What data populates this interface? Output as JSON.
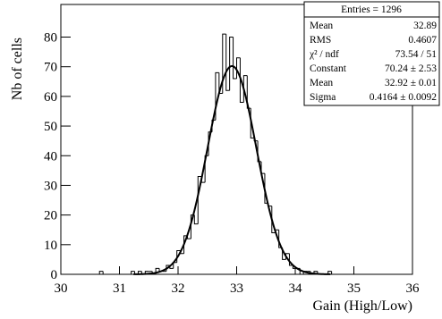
{
  "chart_data": {
    "type": "histogram",
    "x_label": "Gain (High/Low)",
    "y_label": "Nb of cells",
    "bins": [
      30,
      30.06,
      30.12,
      30.18,
      30.24,
      30.3,
      30.36,
      30.42,
      30.48,
      30.54,
      30.6,
      30.66,
      30.72,
      30.78,
      30.84,
      30.9,
      30.96,
      31.02,
      31.08,
      31.14,
      31.2,
      31.26,
      31.32,
      31.38,
      31.44,
      31.5,
      31.56,
      31.62,
      31.68,
      31.74,
      31.8,
      31.86,
      31.92,
      31.98,
      32.04,
      32.1,
      32.16,
      32.22,
      32.28,
      32.34,
      32.4,
      32.46,
      32.52,
      32.58,
      32.64,
      32.7,
      32.76,
      32.82,
      32.88,
      32.94,
      33,
      33.06,
      33.12,
      33.18,
      33.24,
      33.3,
      33.36,
      33.42,
      33.48,
      33.54,
      33.6,
      33.66,
      33.72,
      33.78,
      33.84,
      33.9,
      33.96,
      34.02,
      34.08,
      34.14,
      34.2,
      34.26,
      34.32,
      34.38,
      34.44,
      34.5,
      34.56,
      34.62,
      34.68,
      34.74,
      34.8,
      34.86,
      34.92,
      34.98,
      35.04,
      35.1,
      35.16,
      35.22,
      35.28,
      35.34,
      35.4,
      35.46,
      35.52,
      35.58,
      35.64,
      35.7,
      35.76,
      35.82,
      35.88,
      35.94,
      36
    ],
    "values": [
      0,
      0,
      0,
      0,
      0,
      0,
      0,
      0,
      0,
      0,
      0,
      1,
      0,
      0,
      0,
      0,
      0,
      0,
      0,
      0,
      1,
      0,
      1,
      0,
      1,
      1,
      0,
      2,
      1,
      1,
      3,
      2,
      4,
      8,
      7,
      13,
      12,
      20,
      17,
      33,
      31,
      40,
      48,
      52,
      68,
      61,
      81,
      62,
      80,
      66,
      73,
      58,
      67,
      56,
      46,
      45,
      38,
      34,
      24,
      23,
      14,
      15,
      9,
      5,
      7,
      3,
      2,
      2,
      0,
      1,
      1,
      0,
      1,
      0,
      0,
      0,
      1,
      0,
      0,
      0,
      0,
      0,
      0,
      0,
      0,
      0,
      0,
      0,
      0,
      0,
      0,
      0,
      0,
      0,
      0,
      0,
      0,
      0,
      0,
      0
    ],
    "color": "#000000",
    "fit": {
      "constant": 70.24,
      "mean": 32.92,
      "sigma": 0.4164,
      "color": "#000000"
    },
    "xlim": [
      30,
      36
    ],
    "xticks": [
      30,
      31,
      32,
      33,
      34,
      35,
      36
    ],
    "ylim": [
      0,
      91
    ],
    "yticks": [
      0,
      10,
      20,
      30,
      40,
      50,
      60,
      70,
      80
    ],
    "stats_box": {
      "header": "Entries = 1296",
      "rows": [
        [
          "Mean",
          "32.89"
        ],
        [
          "RMS",
          "0.4607"
        ],
        [
          "χ² / ndf",
          "73.54 / 51"
        ],
        [
          "Constant",
          "70.24 ± 2.53"
        ],
        [
          "Mean",
          "32.92 ± 0.01"
        ],
        [
          "Sigma",
          "0.4164 ± 0.0092"
        ]
      ]
    }
  }
}
